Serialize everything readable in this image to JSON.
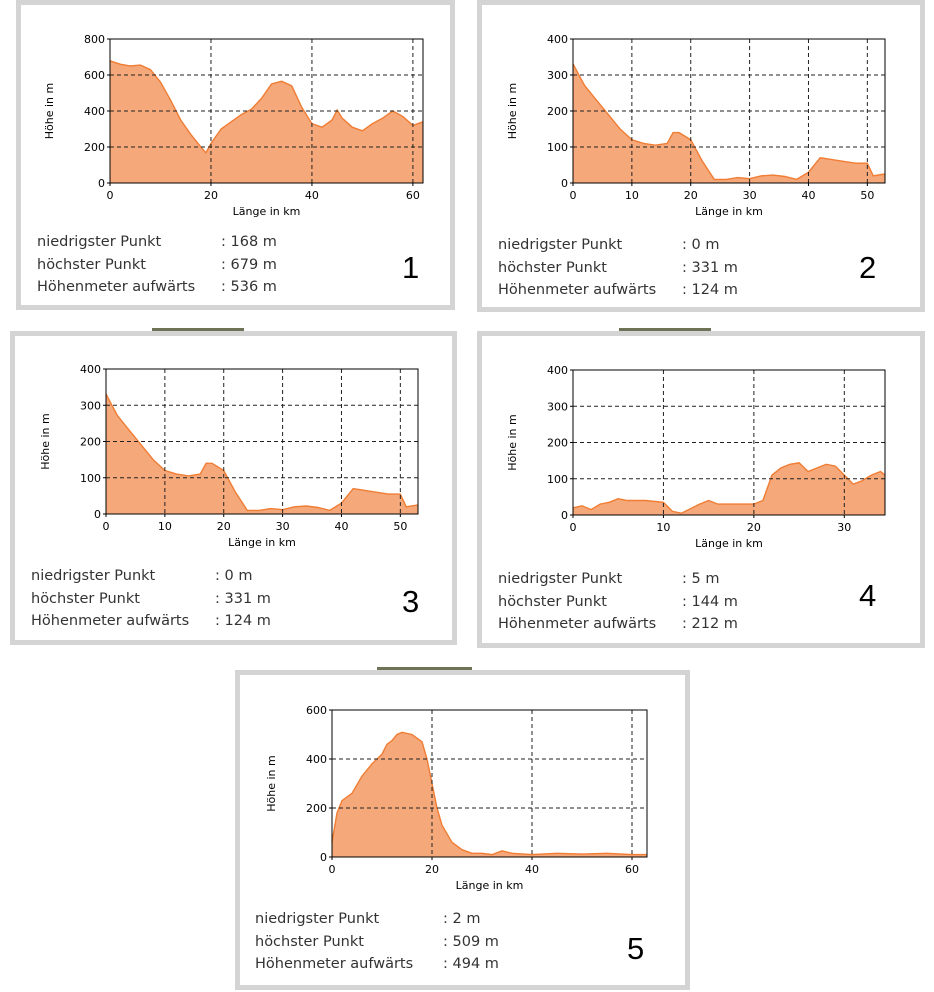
{
  "labels": {
    "ylabel": "Höhe in m",
    "xlabel": "Länge in km",
    "lowest": "niedrigster Punkt",
    "highest": "höchster Punkt",
    "ascent": "Höhenmeter aufwärts"
  },
  "colors": {
    "fill": "#f5a87a",
    "line": "#f07d34",
    "grid": "#222222",
    "panel_border": "#d4d4d4",
    "panel_tab": "#6e7358"
  },
  "panels": [
    {
      "number": "1",
      "lowest": ": 168 m",
      "highest": ": 679 m",
      "ascent": ": 536 m"
    },
    {
      "number": "2",
      "lowest": ": 0 m",
      "highest": ": 331 m",
      "ascent": ": 124 m"
    },
    {
      "number": "3",
      "lowest": ": 0 m",
      "highest": ": 331 m",
      "ascent": ": 124 m"
    },
    {
      "number": "4",
      "lowest": ": 5 m",
      "highest": ": 144 m",
      "ascent": ": 212 m"
    },
    {
      "number": "5",
      "lowest": ": 2 m",
      "highest": ": 509 m",
      "ascent": ": 494 m"
    }
  ],
  "chart_data": [
    {
      "type": "area",
      "xlabel": "Länge in km",
      "ylabel": "Höhe in m",
      "xlim": [
        0,
        62
      ],
      "ylim": [
        0,
        800
      ],
      "xticks": [
        0,
        20,
        40,
        60
      ],
      "yticks": [
        0,
        200,
        400,
        600,
        800
      ],
      "grid": true,
      "series": [
        {
          "x": [
            0,
            2,
            4,
            6,
            8,
            10,
            12,
            14,
            16,
            18,
            19,
            20,
            22,
            24,
            26,
            28,
            30,
            32,
            34,
            36,
            38,
            40,
            42,
            44,
            45,
            46,
            48,
            50,
            52,
            54,
            56,
            58,
            60,
            62
          ],
          "y": [
            679,
            660,
            650,
            655,
            630,
            560,
            460,
            350,
            270,
            200,
            168,
            220,
            300,
            340,
            380,
            410,
            470,
            550,
            565,
            540,
            420,
            330,
            310,
            350,
            405,
            360,
            310,
            290,
            330,
            360,
            400,
            370,
            320,
            340
          ]
        }
      ]
    },
    {
      "type": "area",
      "xlabel": "Länge in km",
      "ylabel": "Höhe in m",
      "xlim": [
        0,
        53
      ],
      "ylim": [
        0,
        400
      ],
      "xticks": [
        0,
        10,
        20,
        30,
        40,
        50
      ],
      "yticks": [
        0,
        100,
        200,
        300,
        400
      ],
      "grid": true,
      "series": [
        {
          "x": [
            0,
            1,
            2,
            4,
            6,
            8,
            10,
            12,
            14,
            16,
            17,
            18,
            20,
            22,
            24,
            26,
            28,
            30,
            32,
            34,
            36,
            38,
            40,
            42,
            44,
            46,
            48,
            50,
            51,
            53
          ],
          "y": [
            331,
            300,
            270,
            230,
            190,
            150,
            120,
            110,
            105,
            110,
            140,
            140,
            120,
            60,
            10,
            10,
            15,
            12,
            20,
            22,
            18,
            10,
            30,
            70,
            65,
            60,
            55,
            55,
            20,
            25
          ]
        }
      ]
    },
    {
      "type": "area",
      "xlabel": "Länge in km",
      "ylabel": "Höhe in m",
      "xlim": [
        0,
        53
      ],
      "ylim": [
        0,
        400
      ],
      "xticks": [
        0,
        10,
        20,
        30,
        40,
        50
      ],
      "yticks": [
        0,
        100,
        200,
        300,
        400
      ],
      "grid": true,
      "series": [
        {
          "x": [
            0,
            1,
            2,
            4,
            6,
            8,
            10,
            12,
            14,
            16,
            17,
            18,
            20,
            22,
            24,
            26,
            28,
            30,
            32,
            34,
            36,
            38,
            40,
            42,
            44,
            46,
            48,
            50,
            51,
            53
          ],
          "y": [
            331,
            300,
            270,
            230,
            190,
            150,
            120,
            110,
            105,
            110,
            140,
            140,
            120,
            60,
            10,
            10,
            15,
            12,
            20,
            22,
            18,
            10,
            30,
            70,
            65,
            60,
            55,
            55,
            20,
            25
          ]
        }
      ]
    },
    {
      "type": "area",
      "xlabel": "Länge in km",
      "ylabel": "Höhe in m",
      "xlim": [
        0,
        34.5
      ],
      "ylim": [
        0,
        400
      ],
      "xticks": [
        0,
        10,
        20,
        30
      ],
      "yticks": [
        0,
        100,
        200,
        300,
        400
      ],
      "grid": true,
      "series": [
        {
          "x": [
            0,
            1,
            2,
            3,
            4,
            5,
            6,
            8,
            10,
            11,
            12,
            14,
            15,
            16,
            18,
            20,
            21,
            22,
            23,
            24,
            25,
            26,
            27,
            28,
            29,
            30,
            31,
            32,
            33,
            34,
            34.5
          ],
          "y": [
            20,
            25,
            15,
            30,
            35,
            45,
            40,
            40,
            35,
            10,
            5,
            30,
            40,
            30,
            30,
            30,
            40,
            110,
            130,
            140,
            144,
            120,
            130,
            140,
            135,
            110,
            85,
            95,
            110,
            120,
            110
          ]
        }
      ]
    },
    {
      "type": "area",
      "xlabel": "Länge in km",
      "ylabel": "Höhe in m",
      "xlim": [
        0,
        63
      ],
      "ylim": [
        0,
        600
      ],
      "xticks": [
        0,
        20,
        40,
        60
      ],
      "yticks": [
        0,
        200,
        400,
        600
      ],
      "grid": true,
      "series": [
        {
          "x": [
            0,
            1,
            2,
            4,
            6,
            8,
            10,
            11,
            12,
            13,
            14,
            16,
            18,
            19,
            20,
            21,
            22,
            24,
            26,
            28,
            30,
            32,
            34,
            36,
            40,
            45,
            50,
            55,
            60,
            63
          ],
          "y": [
            60,
            180,
            230,
            260,
            330,
            380,
            420,
            460,
            475,
            500,
            509,
            500,
            470,
            400,
            300,
            200,
            130,
            60,
            30,
            15,
            15,
            10,
            25,
            15,
            10,
            15,
            12,
            15,
            10,
            10
          ]
        }
      ]
    }
  ]
}
